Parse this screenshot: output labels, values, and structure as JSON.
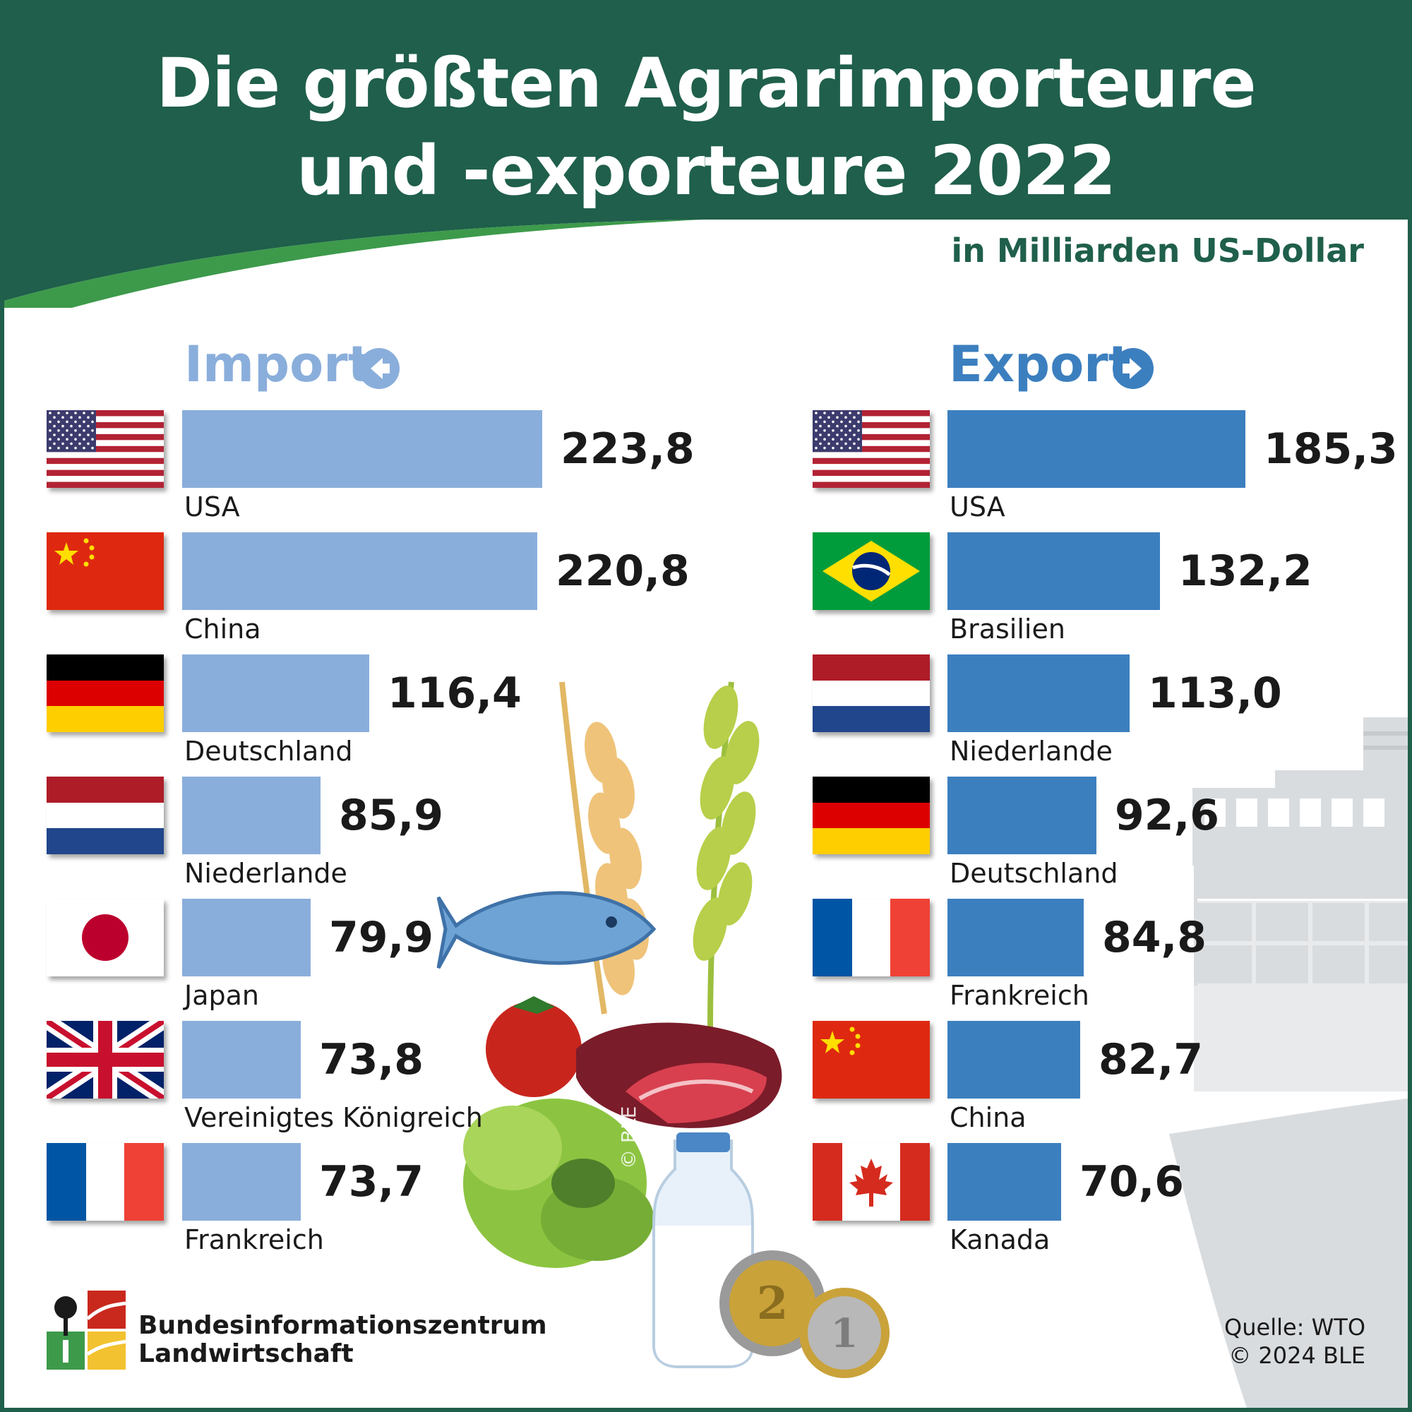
{
  "header": {
    "title_line1": "Die größten Agrarimporteure",
    "title_line2": "und -exporteure 2022",
    "subtitle": "in Milliarden US-Dollar"
  },
  "colors": {
    "header_green": "#1f5f4b",
    "swoosh_green": "#3d9a4b",
    "import_bar": "#8aaedb",
    "export_bar": "#3c7fbf"
  },
  "chart_data": [
    {
      "type": "bar",
      "orientation": "horizontal",
      "title": "Import",
      "icon": "arrow-left-icon",
      "categories": [
        "USA",
        "China",
        "Deutschland",
        "Niederlande",
        "Japan",
        "Vereinigtes Königreich",
        "Frankreich"
      ],
      "values": [
        223.8,
        220.8,
        116.4,
        85.9,
        79.9,
        73.8,
        73.7
      ],
      "value_labels": [
        "223,8",
        "220,8",
        "116,4",
        "85,9",
        "79,9",
        "73,8",
        "73,7"
      ],
      "flags": [
        "us",
        "cn",
        "de",
        "nl",
        "jp",
        "gb",
        "fr"
      ]
    },
    {
      "type": "bar",
      "orientation": "horizontal",
      "title": "Export",
      "icon": "arrow-right-icon",
      "categories": [
        "USA",
        "Brasilien",
        "Niederlande",
        "Deutschland",
        "Frankreich",
        "China",
        "Kanada"
      ],
      "values": [
        185.3,
        132.2,
        113.0,
        92.6,
        84.8,
        82.7,
        70.6
      ],
      "value_labels": [
        "185,3",
        "132,2",
        "113,0",
        "92,6",
        "84,8",
        "82,7",
        "70,6"
      ],
      "flags": [
        "us",
        "br",
        "nl",
        "de",
        "fr",
        "cn",
        "ca"
      ]
    }
  ],
  "footer": {
    "org_line1": "Bundesinformationszentrum",
    "org_line2": "Landwirtschaft",
    "source_line1": "Quelle: WTO",
    "source_line2": "© 2024 BLE"
  },
  "watermark": "© BLE"
}
